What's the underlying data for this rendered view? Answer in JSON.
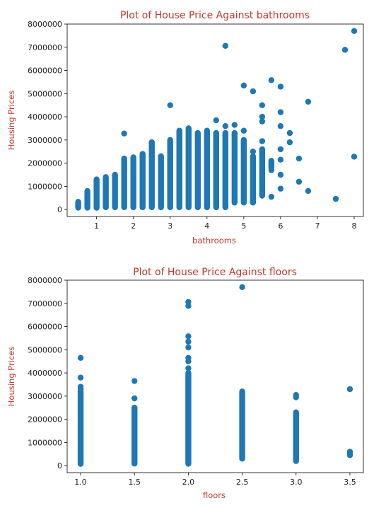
{
  "chart_data": [
    {
      "type": "scatter",
      "title": "Plot of House Price Against bathrooms",
      "xlabel": "bathrooms",
      "ylabel": "Housing Prices",
      "xlim": [
        0.2,
        8.25
      ],
      "ylim": [
        -300000,
        8000000
      ],
      "xticks": [
        1,
        2,
        3,
        4,
        5,
        6,
        7,
        8
      ],
      "yticks": [
        0,
        1000000,
        2000000,
        3000000,
        4000000,
        5000000,
        6000000,
        7000000,
        8000000
      ],
      "marker_color": "#1f77b4",
      "columns": [
        {
          "x": 0.5,
          "ymin": 80000,
          "ymax": 330000
        },
        {
          "x": 0.75,
          "ymin": 80000,
          "ymax": 800000
        },
        {
          "x": 1.0,
          "ymin": 78000,
          "ymax": 1300000
        },
        {
          "x": 1.25,
          "ymin": 100000,
          "ymax": 1400000
        },
        {
          "x": 1.5,
          "ymin": 100000,
          "ymax": 1500000
        },
        {
          "x": 1.75,
          "ymin": 100000,
          "ymax": 2200000
        },
        {
          "x": 2.0,
          "ymin": 100000,
          "ymax": 2250000
        },
        {
          "x": 2.25,
          "ymin": 100000,
          "ymax": 2400000
        },
        {
          "x": 2.5,
          "ymin": 100000,
          "ymax": 2900000
        },
        {
          "x": 2.75,
          "ymin": 100000,
          "ymax": 2300000
        },
        {
          "x": 3.0,
          "ymin": 100000,
          "ymax": 3000000
        },
        {
          "x": 3.25,
          "ymin": 100000,
          "ymax": 3400000
        },
        {
          "x": 3.5,
          "ymin": 100000,
          "ymax": 3500000
        },
        {
          "x": 3.75,
          "ymin": 100000,
          "ymax": 3300000
        },
        {
          "x": 4.0,
          "ymin": 100000,
          "ymax": 3400000
        },
        {
          "x": 4.25,
          "ymin": 100000,
          "ymax": 3300000
        },
        {
          "x": 4.5,
          "ymin": 100000,
          "ymax": 3300000
        },
        {
          "x": 4.75,
          "ymin": 300000,
          "ymax": 3300000
        },
        {
          "x": 5.0,
          "ymin": 300000,
          "ymax": 3000000
        },
        {
          "x": 5.25,
          "ymin": 300000,
          "ymax": 2300000
        },
        {
          "x": 5.5,
          "ymin": 600000,
          "ymax": 2600000
        },
        {
          "x": 5.75,
          "ymin": 1800000,
          "ymax": 2100000
        }
      ],
      "points": [
        [
          1.75,
          3280000
        ],
        [
          3.0,
          4500000
        ],
        [
          4.25,
          3850000
        ],
        [
          4.5,
          7060000
        ],
        [
          4.5,
          3600000
        ],
        [
          4.75,
          3650000
        ],
        [
          5.0,
          5350000
        ],
        [
          5.0,
          3400000
        ],
        [
          5.25,
          5100000
        ],
        [
          5.25,
          2500000
        ],
        [
          5.5,
          4500000
        ],
        [
          5.5,
          4000000
        ],
        [
          5.5,
          3800000
        ],
        [
          5.5,
          2950000
        ],
        [
          5.75,
          5580000
        ],
        [
          5.75,
          1700000
        ],
        [
          5.75,
          550000
        ],
        [
          6.0,
          5300000
        ],
        [
          6.0,
          4200000
        ],
        [
          6.0,
          3600000
        ],
        [
          6.0,
          2600000
        ],
        [
          6.0,
          2150000
        ],
        [
          6.0,
          1500000
        ],
        [
          6.0,
          900000
        ],
        [
          6.25,
          3300000
        ],
        [
          6.25,
          2900000
        ],
        [
          6.5,
          2200000
        ],
        [
          6.5,
          1200000
        ],
        [
          6.75,
          4650000
        ],
        [
          6.75,
          800000
        ],
        [
          7.5,
          460000
        ],
        [
          7.75,
          6890000
        ],
        [
          8.0,
          7700000
        ],
        [
          8.0,
          2280000
        ]
      ]
    },
    {
      "type": "scatter",
      "title": "Plot of House Price Against floors",
      "xlabel": "floors",
      "ylabel": "Housing Prices",
      "xlim": [
        0.875,
        3.625
      ],
      "ylim": [
        -300000,
        8000000
      ],
      "xticks": [
        1.0,
        1.5,
        2.0,
        2.5,
        3.0,
        3.5
      ],
      "yticks": [
        0,
        1000000,
        2000000,
        3000000,
        4000000,
        5000000,
        6000000,
        7000000,
        8000000
      ],
      "marker_color": "#1f77b4",
      "columns": [
        {
          "x": 1.0,
          "ymin": 78000,
          "ymax": 3200000
        },
        {
          "x": 1.5,
          "ymin": 90000,
          "ymax": 2500000
        },
        {
          "x": 2.0,
          "ymin": 80000,
          "ymax": 4000000
        },
        {
          "x": 2.5,
          "ymin": 300000,
          "ymax": 3200000
        },
        {
          "x": 3.0,
          "ymin": 200000,
          "ymax": 2300000
        }
      ],
      "points": [
        [
          1.0,
          4650000
        ],
        [
          1.0,
          3800000
        ],
        [
          1.0,
          3400000
        ],
        [
          1.0,
          3300000
        ],
        [
          1.5,
          3650000
        ],
        [
          1.5,
          2900000
        ],
        [
          2.0,
          7060000
        ],
        [
          2.0,
          6890000
        ],
        [
          2.0,
          5580000
        ],
        [
          2.0,
          5350000
        ],
        [
          2.0,
          5100000
        ],
        [
          2.0,
          4650000
        ],
        [
          2.0,
          4500000
        ],
        [
          2.0,
          4200000
        ],
        [
          2.5,
          7700000
        ],
        [
          3.0,
          3050000
        ],
        [
          3.0,
          2950000
        ],
        [
          3.5,
          3300000
        ],
        [
          3.5,
          600000
        ],
        [
          3.5,
          550000
        ],
        [
          3.5,
          450000
        ]
      ]
    }
  ]
}
